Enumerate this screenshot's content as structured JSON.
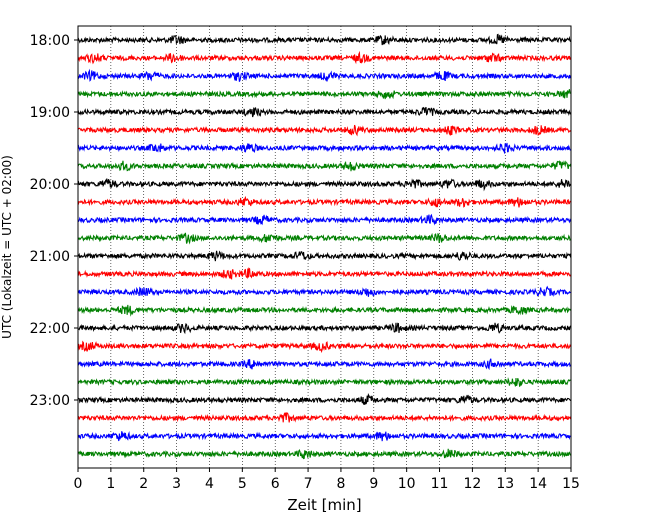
{
  "chart_data": {
    "type": "line",
    "title": "",
    "xlabel": "Zeit  [min]",
    "ylabel": "UTC (Lokalzeit = UTC + 02:00)",
    "xlim": [
      0,
      15
    ],
    "xticks": [
      0,
      1,
      2,
      3,
      4,
      5,
      6,
      7,
      8,
      9,
      10,
      11,
      12,
      13,
      14,
      15
    ],
    "x_grid": "dotted vertical lines at each minute",
    "y_tick_labels": [
      "18:00",
      "19:00",
      "20:00",
      "21:00",
      "22:00",
      "23:00"
    ],
    "trace_interval_min": 15,
    "trace_start": "18:00",
    "trace_count": 24,
    "trace_color_cycle": [
      "#000000",
      "#ff0000",
      "#0000ff",
      "#008000"
    ],
    "series": [
      {
        "start": "18:00",
        "color": "#000000",
        "events_min": [
          3.0,
          9.3,
          12.8
        ]
      },
      {
        "start": "18:15",
        "color": "#ff0000",
        "events_min": [
          0.5,
          2.9,
          8.6,
          12.6
        ]
      },
      {
        "start": "18:30",
        "color": "#0000ff",
        "events_min": [
          0.4,
          2.2,
          4.9,
          7.6,
          11.1
        ]
      },
      {
        "start": "18:45",
        "color": "#008000",
        "events_min": [
          9.4,
          14.9
        ]
      },
      {
        "start": "19:00",
        "color": "#000000",
        "events_min": [
          5.3,
          10.6
        ]
      },
      {
        "start": "19:15",
        "color": "#ff0000",
        "events_min": [
          8.4,
          11.3,
          14.0
        ]
      },
      {
        "start": "19:30",
        "color": "#0000ff",
        "events_min": [
          2.4,
          5.2,
          13.0
        ]
      },
      {
        "start": "19:45",
        "color": "#008000",
        "events_min": [
          1.4,
          8.3,
          14.7
        ]
      },
      {
        "start": "20:00",
        "color": "#000000",
        "events_min": [
          0.9,
          10.2,
          11.3,
          12.3,
          14.8
        ]
      },
      {
        "start": "20:15",
        "color": "#ff0000",
        "events_min": [
          5.1,
          10.9,
          11.7,
          13.4
        ]
      },
      {
        "start": "20:30",
        "color": "#0000ff",
        "events_min": [
          5.6,
          10.7
        ]
      },
      {
        "start": "20:45",
        "color": "#008000",
        "events_min": [
          3.3,
          5.8,
          11.0
        ]
      },
      {
        "start": "21:00",
        "color": "#000000",
        "events_min": [
          4.2,
          6.8,
          11.7
        ]
      },
      {
        "start": "21:15",
        "color": "#ff0000",
        "events_min": [
          4.6,
          5.2
        ]
      },
      {
        "start": "21:30",
        "color": "#0000ff",
        "events_min": [
          2.0,
          8.8,
          14.2
        ]
      },
      {
        "start": "21:45",
        "color": "#008000",
        "events_min": [
          1.5,
          13.4
        ]
      },
      {
        "start": "22:00",
        "color": "#000000",
        "events_min": [
          3.2,
          9.7,
          12.7
        ]
      },
      {
        "start": "22:15",
        "color": "#ff0000",
        "events_min": [
          0.3,
          7.4
        ]
      },
      {
        "start": "22:30",
        "color": "#0000ff",
        "events_min": [
          5.3,
          12.6
        ]
      },
      {
        "start": "22:45",
        "color": "#008000",
        "events_min": [
          13.3
        ]
      },
      {
        "start": "23:00",
        "color": "#000000",
        "events_min": [
          8.8,
          11.8
        ]
      },
      {
        "start": "23:15",
        "color": "#ff0000",
        "events_min": [
          6.3
        ]
      },
      {
        "start": "23:30",
        "color": "#0000ff",
        "events_min": [
          1.3,
          9.3
        ]
      },
      {
        "start": "23:45",
        "color": "#008000",
        "events_min": [
          6.9,
          11.3
        ]
      }
    ]
  }
}
